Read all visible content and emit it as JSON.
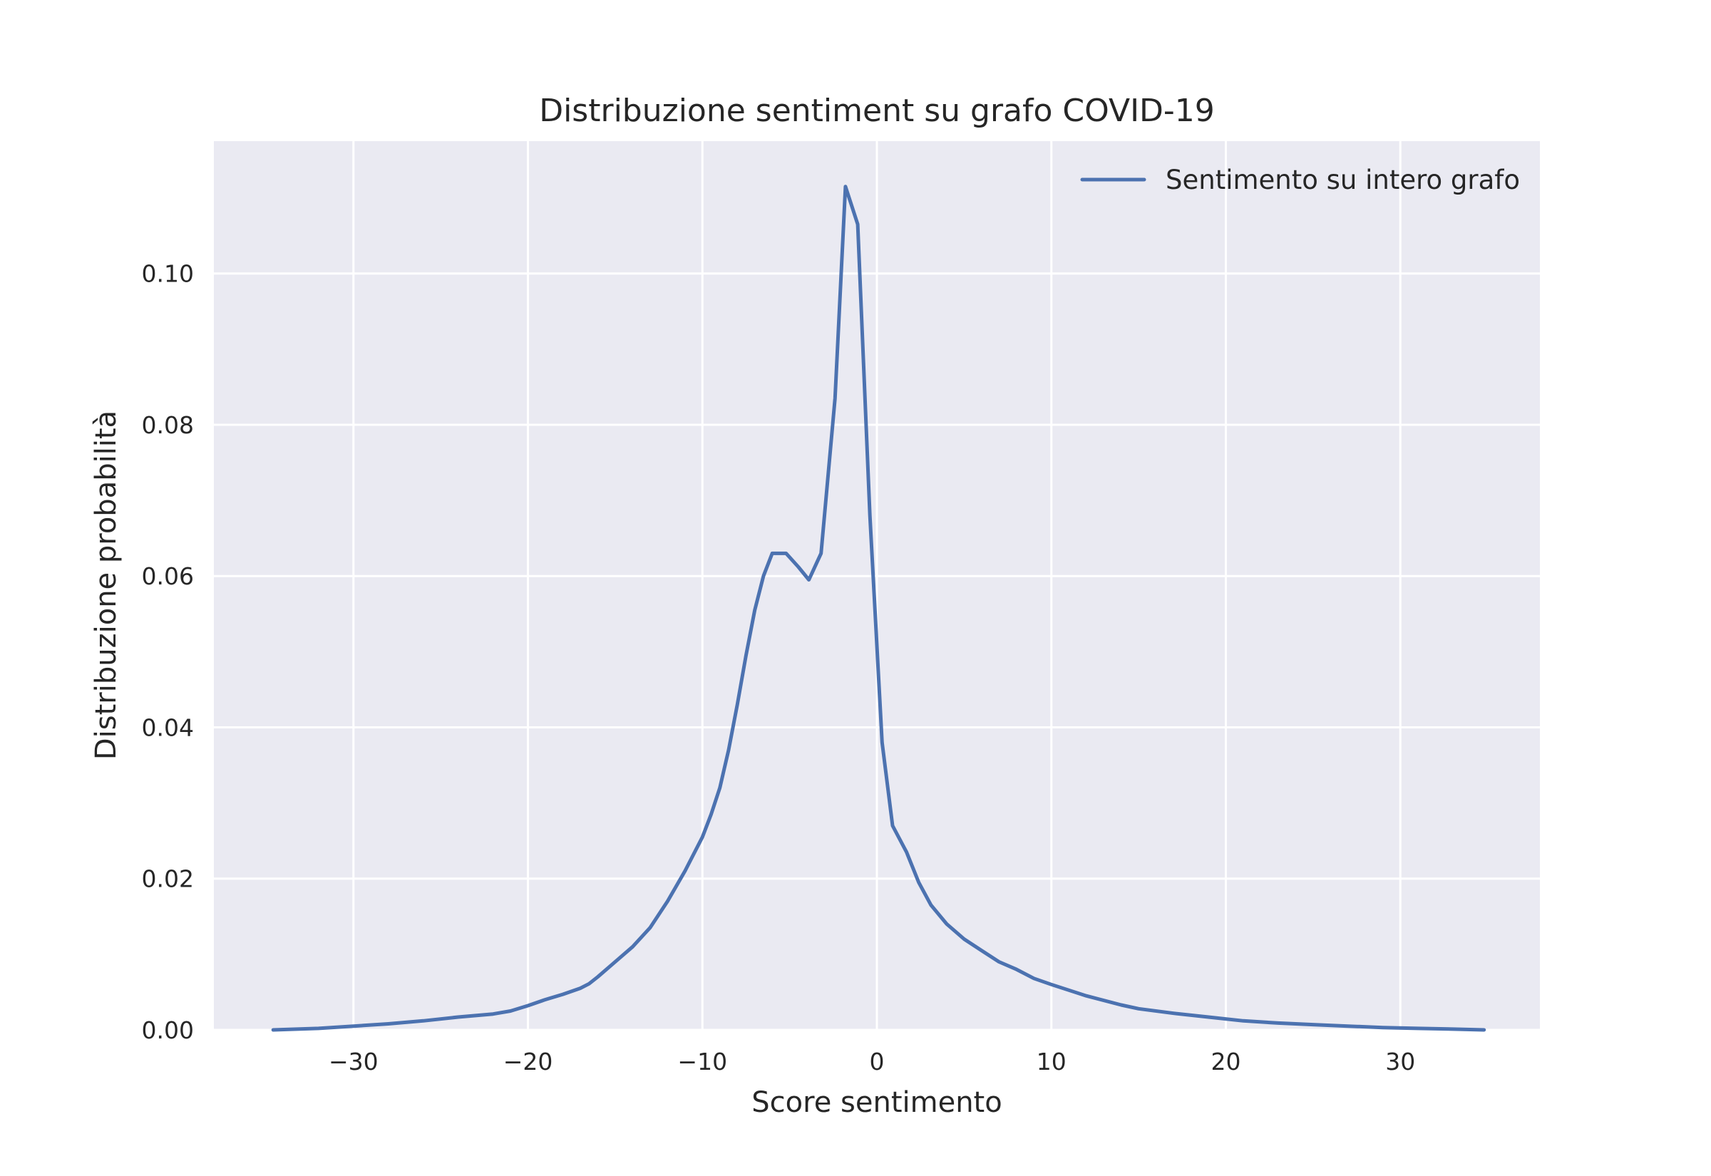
{
  "chart_data": {
    "type": "line",
    "title": "Distribuzione sentiment su grafo COVID-19",
    "xlabel": "Score sentimento",
    "ylabel": "Distribuzione probabilità",
    "xlim": [
      -38,
      38
    ],
    "ylim": [
      0,
      0.1175
    ],
    "x_ticks": [
      -30,
      -20,
      -10,
      0,
      10,
      20,
      30
    ],
    "x_tick_labels": [
      "−30",
      "−20",
      "−10",
      "0",
      "10",
      "20",
      "30"
    ],
    "y_ticks": [
      0.0,
      0.02,
      0.04,
      0.06,
      0.08,
      0.1
    ],
    "y_tick_labels": [
      "0.00",
      "0.02",
      "0.04",
      "0.06",
      "0.08",
      "0.10"
    ],
    "grid": true,
    "legend_position": "top-right",
    "series": [
      {
        "name": "Sentimento su intero grafo",
        "color": "#4c72b0",
        "x": [
          -34.6,
          -32,
          -30,
          -28,
          -26,
          -24,
          -22,
          -21,
          -20,
          -19,
          -18,
          -17,
          -16.5,
          -16,
          -15,
          -14,
          -13,
          -12,
          -11,
          -10,
          -9.5,
          -9,
          -8.5,
          -8,
          -7.5,
          -7,
          -6.5,
          -6,
          -5.2,
          -4.5,
          -3.9,
          -3.2,
          -2.4,
          -1.8,
          -1.1,
          -0.4,
          0.3,
          0.9,
          1.7,
          2.4,
          3.1,
          4,
          5,
          6,
          7,
          8,
          9,
          10,
          12,
          14,
          15,
          17,
          19,
          21,
          23,
          25,
          27,
          29,
          31,
          33,
          34.8
        ],
        "y": [
          0.0,
          0.0002,
          0.0005,
          0.0008,
          0.0012,
          0.0017,
          0.0021,
          0.0025,
          0.0032,
          0.004,
          0.0047,
          0.0055,
          0.0061,
          0.007,
          0.009,
          0.011,
          0.0135,
          0.017,
          0.021,
          0.0255,
          0.0285,
          0.032,
          0.037,
          0.043,
          0.0495,
          0.0555,
          0.06,
          0.063,
          0.063,
          0.0612,
          0.0595,
          0.063,
          0.0835,
          0.1115,
          0.1065,
          0.068,
          0.038,
          0.027,
          0.0235,
          0.0195,
          0.0165,
          0.014,
          0.012,
          0.0105,
          0.009,
          0.008,
          0.0068,
          0.006,
          0.0045,
          0.0033,
          0.0028,
          0.0022,
          0.0017,
          0.0012,
          0.0009,
          0.0007,
          0.0005,
          0.0003,
          0.0002,
          0.0001,
          0.0
        ]
      }
    ]
  }
}
